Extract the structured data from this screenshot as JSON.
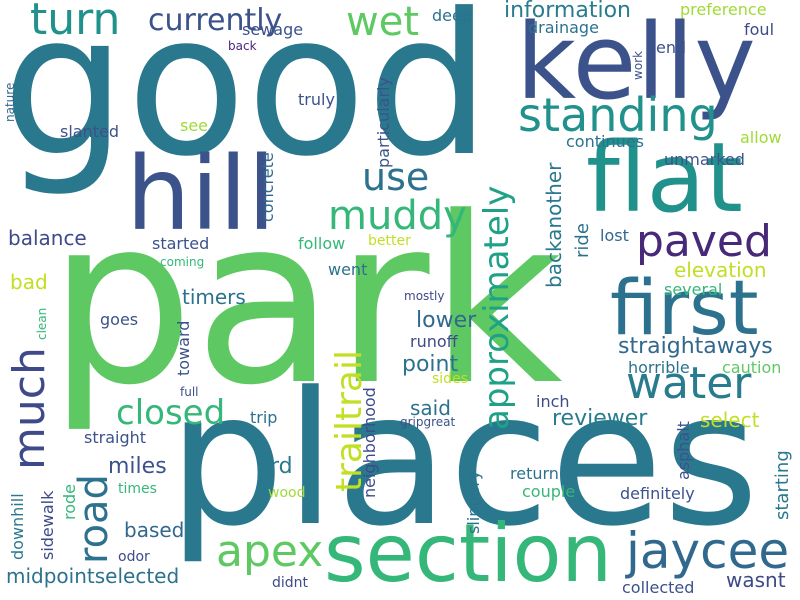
{
  "words": [
    {
      "text": "park",
      "color": "#5ec962"
    },
    {
      "text": "good",
      "color": "#2a788e"
    },
    {
      "text": "places",
      "color": "#2a788e"
    },
    {
      "text": "kelly",
      "color": "#3b528b"
    },
    {
      "text": "flat",
      "color": "#21918c"
    },
    {
      "text": "hill",
      "color": "#3b528b"
    },
    {
      "text": "section",
      "color": "#35b779"
    },
    {
      "text": "first",
      "color": "#2c728e"
    },
    {
      "text": "standing",
      "color": "#21918c"
    },
    {
      "text": "jaycee",
      "color": "#31688e"
    },
    {
      "text": "much",
      "color": "#3e4a89"
    },
    {
      "text": "trailtrail",
      "color": "#c2df23"
    },
    {
      "text": "apex",
      "color": "#5ec962"
    },
    {
      "text": "water",
      "color": "#287c8e"
    },
    {
      "text": "paved",
      "color": "#482878"
    },
    {
      "text": "turn",
      "color": "#21918c"
    },
    {
      "text": "approximately",
      "color": "#1fa187"
    },
    {
      "text": "muddy",
      "color": "#35b779"
    },
    {
      "text": "wet",
      "color": "#5ec962"
    },
    {
      "text": "road",
      "color": "#2c728e"
    },
    {
      "text": "use",
      "color": "#2c728e"
    },
    {
      "text": "closed",
      "color": "#35b779"
    },
    {
      "text": "currently",
      "color": "#3b528b"
    },
    {
      "text": "straightaways",
      "color": "#31688e"
    },
    {
      "text": "midpointselected",
      "color": "#2c728e"
    },
    {
      "text": "information",
      "color": "#287c8e"
    },
    {
      "text": "backanother",
      "color": "#2a788e"
    },
    {
      "text": "reviewer",
      "color": "#287c8e"
    },
    {
      "text": "elevation",
      "color": "#c2df23"
    },
    {
      "text": "point",
      "color": "#2c728e"
    },
    {
      "text": "lower",
      "color": "#31688e"
    },
    {
      "text": "timers",
      "color": "#2c728e"
    },
    {
      "text": "balance",
      "color": "#3e4a89"
    },
    {
      "text": "starting",
      "color": "#2a788e"
    },
    {
      "text": "wasnt",
      "color": "#3e4a89"
    },
    {
      "text": "miles",
      "color": "#3b528b"
    },
    {
      "text": "based",
      "color": "#31688e"
    },
    {
      "text": "ride",
      "color": "#2c728e"
    },
    {
      "text": "bad",
      "color": "#c2df23"
    },
    {
      "text": "select",
      "color": "#c2df23"
    },
    {
      "text": "rd",
      "color": "#2a788e"
    },
    {
      "text": "said",
      "color": "#2c728e"
    },
    {
      "text": "return",
      "color": "#2c728e"
    },
    {
      "text": "horrible",
      "color": "#2c728e"
    },
    {
      "text": "caution",
      "color": "#5ec962"
    },
    {
      "text": "definitely",
      "color": "#3b528b"
    },
    {
      "text": "collected",
      "color": "#3b528b"
    },
    {
      "text": "couple",
      "color": "#35b779"
    },
    {
      "text": "continues",
      "color": "#2c728e"
    },
    {
      "text": "unmarked",
      "color": "#3b528b"
    },
    {
      "text": "allow",
      "color": "#a0da39"
    },
    {
      "text": "several",
      "color": "#35b779"
    },
    {
      "text": "lost",
      "color": "#31688e"
    },
    {
      "text": "end",
      "color": "#3b528b"
    },
    {
      "text": "foul",
      "color": "#3e4a89"
    },
    {
      "text": "drainage",
      "color": "#2c728e"
    },
    {
      "text": "deep",
      "color": "#2c728e"
    },
    {
      "text": "preference",
      "color": "#a0da39"
    },
    {
      "text": "slanted",
      "color": "#3b528b"
    },
    {
      "text": "truly",
      "color": "#3b528b"
    },
    {
      "text": "see",
      "color": "#a0da39"
    },
    {
      "text": "sewage",
      "color": "#3b528b"
    },
    {
      "text": "back",
      "color": "#482878"
    },
    {
      "text": "particularly",
      "color": "#3b528b"
    },
    {
      "text": "concrete",
      "color": "#31688e"
    },
    {
      "text": "started",
      "color": "#3b528b"
    },
    {
      "text": "follow",
      "color": "#35b779"
    },
    {
      "text": "better",
      "color": "#c2df23"
    },
    {
      "text": "went",
      "color": "#2c728e"
    },
    {
      "text": "coming",
      "color": "#35b779"
    },
    {
      "text": "runoff",
      "color": "#3e4a89"
    },
    {
      "text": "goes",
      "color": "#3b528b"
    },
    {
      "text": "toward",
      "color": "#3b528b"
    },
    {
      "text": "mostly",
      "color": "#3e4a89"
    },
    {
      "text": "sides",
      "color": "#c2df23"
    },
    {
      "text": "inch",
      "color": "#3e4a89"
    },
    {
      "text": "trip",
      "color": "#2c728e"
    },
    {
      "text": "full",
      "color": "#3b528b"
    },
    {
      "text": "neighborhood",
      "color": "#3e4a89"
    },
    {
      "text": "gripgreat",
      "color": "#3b528b"
    },
    {
      "text": "slippery",
      "color": "#2c728e"
    },
    {
      "text": "asphalt",
      "color": "#3b528b"
    },
    {
      "text": "straight",
      "color": "#3b528b"
    },
    {
      "text": "times",
      "color": "#35b779"
    },
    {
      "text": "wood",
      "color": "#a0da39"
    },
    {
      "text": "rode",
      "color": "#35b779"
    },
    {
      "text": "sidewalk",
      "color": "#3e4a89"
    },
    {
      "text": "downhill",
      "color": "#2a788e"
    },
    {
      "text": "odor",
      "color": "#3e4a89"
    },
    {
      "text": "didnt",
      "color": "#3e4a89"
    },
    {
      "text": "clean",
      "color": "#35b779"
    },
    {
      "text": "nature",
      "color": "#31688e"
    },
    {
      "text": "work",
      "color": "#3b528b"
    }
  ]
}
